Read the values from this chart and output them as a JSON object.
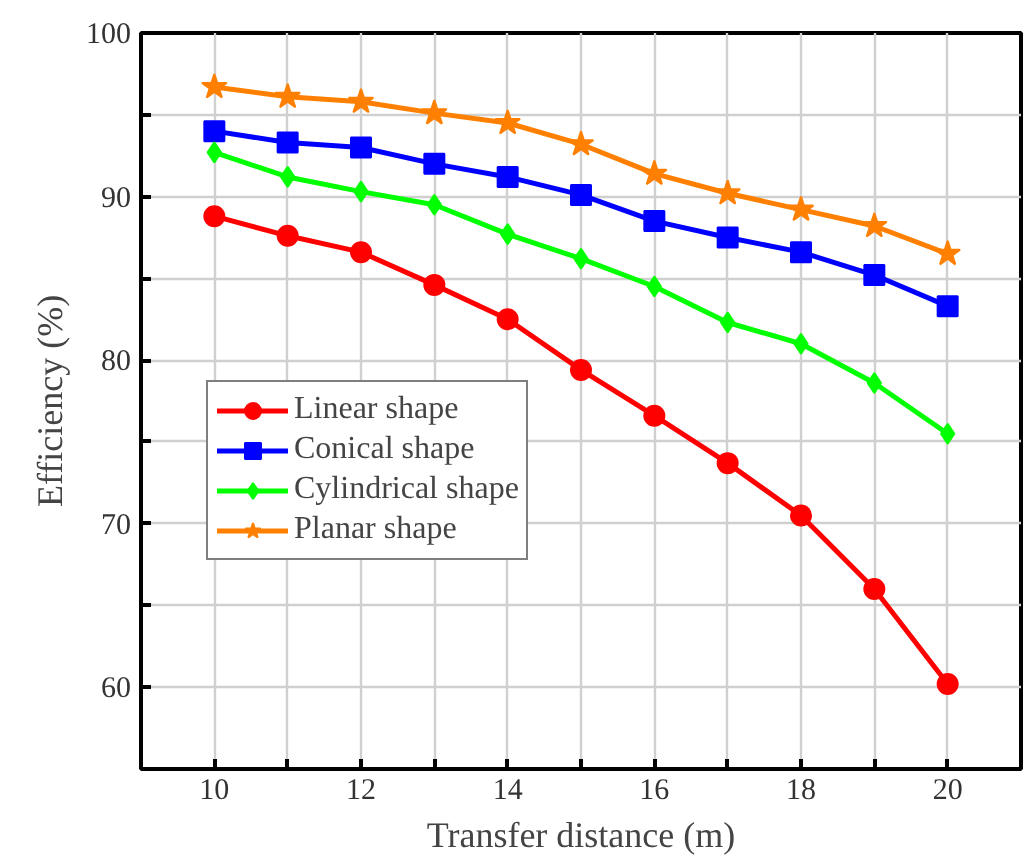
{
  "chart_data": {
    "type": "line",
    "xlabel": "Transfer distance (m)",
    "ylabel": "Efficiency (%)",
    "x": [
      10,
      11,
      12,
      13,
      14,
      15,
      16,
      17,
      18,
      19,
      20
    ],
    "xlim": [
      9,
      21
    ],
    "ylim": [
      55,
      100
    ],
    "xticks": [
      10,
      {
        "value": 11,
        "label": null
      },
      12,
      {
        "value": 13,
        "label": null
      },
      14,
      {
        "value": 15,
        "label": null
      },
      16,
      {
        "value": 17,
        "label": null
      },
      18,
      {
        "value": 19,
        "label": null
      },
      20
    ],
    "yticks": [
      {
        "value": 55,
        "label": null
      },
      60,
      {
        "value": 65,
        "label": null
      },
      70,
      {
        "value": 75,
        "label": null
      },
      80,
      {
        "value": 85,
        "label": null
      },
      90,
      {
        "value": 95,
        "label": null
      },
      100
    ],
    "grid": true,
    "legend": "left",
    "line_style": "solid",
    "series": [
      {
        "name": "Linear shape",
        "color": "#ff0000",
        "marker": "circle",
        "values": [
          88.8,
          87.6,
          86.6,
          84.6,
          82.5,
          79.4,
          76.6,
          73.7,
          70.5,
          66.0,
          60.2
        ]
      },
      {
        "name": "Conical shape",
        "color": "#0000ff",
        "marker": "square",
        "values": [
          94.0,
          93.3,
          93.0,
          92.0,
          91.2,
          90.1,
          88.5,
          87.5,
          86.6,
          85.2,
          83.3
        ]
      },
      {
        "name": "Cylindrical shape",
        "color": "#00ff00",
        "marker": "diamond",
        "values": [
          92.7,
          91.2,
          90.3,
          89.5,
          87.7,
          86.2,
          84.5,
          82.3,
          81.0,
          78.6,
          75.5
        ]
      },
      {
        "name": "Planar shape",
        "color": "#ff8000",
        "marker": "star",
        "values": [
          96.7,
          96.1,
          95.8,
          95.1,
          94.5,
          93.2,
          91.4,
          90.2,
          89.2,
          88.2,
          86.5
        ]
      }
    ]
  }
}
